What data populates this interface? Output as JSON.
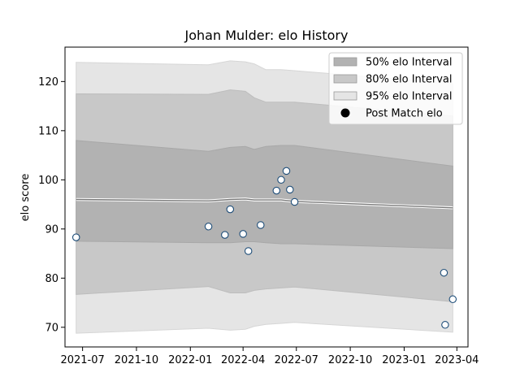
{
  "chart_data": {
    "type": "area",
    "title": "Johan Mulder: elo History",
    "xlabel": "",
    "ylabel": "elo score",
    "xlim": [
      "2021-06-01",
      "2023-04-20"
    ],
    "ylim": [
      66,
      127
    ],
    "x_ticks": [
      "2021-07-01",
      "2021-10-01",
      "2022-01-01",
      "2022-04-01",
      "2022-07-01",
      "2022-10-01",
      "2023-01-01",
      "2023-04-01"
    ],
    "x_tick_labels": [
      "2021-07",
      "2021-10",
      "2022-01",
      "2022-04",
      "2022-07",
      "2022-10",
      "2023-01",
      "2023-04"
    ],
    "y_ticks": [
      70,
      80,
      90,
      100,
      110,
      120
    ],
    "y_tick_labels": [
      "70",
      "80",
      "90",
      "100",
      "110",
      "120"
    ],
    "grid": false,
    "legend_position": "top-right",
    "legend": [
      {
        "label": "50% elo Interval",
        "kind": "band",
        "color": "#b2b2b2"
      },
      {
        "label": "80% elo Interval",
        "kind": "band",
        "color": "#c8c8c8"
      },
      {
        "label": "95% elo Interval",
        "kind": "band",
        "color": "#e5e5e5"
      },
      {
        "label": "Post Match elo",
        "kind": "marker",
        "color": "#000000"
      }
    ],
    "bands": {
      "dates": [
        "2021-06-20",
        "2022-02-01",
        "2022-03-10",
        "2022-04-05",
        "2022-04-20",
        "2022-05-10",
        "2022-06-05",
        "2022-06-28",
        "2023-03-25"
      ],
      "mean": [
        96.0,
        95.7,
        96.0,
        96.1,
        95.9,
        95.9,
        95.9,
        95.6,
        94.3
      ],
      "lower95": [
        68.8,
        69.8,
        69.4,
        69.6,
        70.2,
        70.6,
        70.8,
        71.0,
        69.0
      ],
      "upper95": [
        123.9,
        123.4,
        124.2,
        124.0,
        123.6,
        122.4,
        122.4,
        122.2,
        119.6
      ],
      "lower80": [
        76.7,
        78.3,
        77.0,
        77.0,
        77.5,
        77.8,
        78.0,
        78.2,
        75.2
      ],
      "upper80": [
        117.5,
        117.4,
        118.3,
        118.0,
        116.7,
        115.8,
        115.8,
        115.8,
        113.0
      ],
      "lower50": [
        87.5,
        87.2,
        87.2,
        87.4,
        87.4,
        87.2,
        87.0,
        87.0,
        86.0
      ],
      "upper50": [
        108.0,
        105.8,
        106.6,
        106.8,
        106.2,
        106.8,
        107.0,
        107.0,
        102.8
      ]
    },
    "series": [
      {
        "x": [
          "2021-06-20",
          "2022-02-01",
          "2022-03-01",
          "2022-03-10",
          "2022-04-01",
          "2022-04-10",
          "2022-05-01",
          "2022-05-28",
          "2022-06-05",
          "2022-06-14",
          "2022-06-20",
          "2022-06-28",
          "2023-03-10",
          "2023-03-12",
          "2023-03-25"
        ],
        "y": [
          88.3,
          90.5,
          88.8,
          94.0,
          89.0,
          85.5,
          90.8,
          97.8,
          100.0,
          101.8,
          98.0,
          95.5,
          81.1,
          70.5,
          75.7
        ],
        "marker_fill": "#ffffff",
        "marker_edge": "#1f4e79"
      }
    ]
  }
}
